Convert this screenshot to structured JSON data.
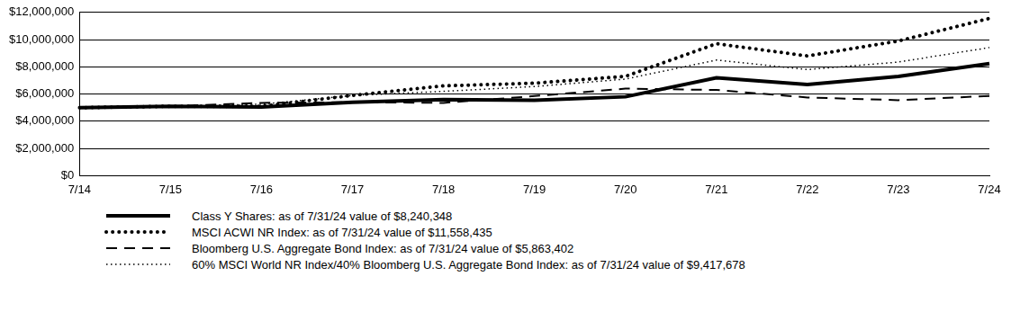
{
  "chart_data": {
    "type": "line",
    "categories": [
      "7/14",
      "7/15",
      "7/16",
      "7/17",
      "7/18",
      "7/19",
      "7/20",
      "7/21",
      "7/22",
      "7/23",
      "7/24"
    ],
    "series": [
      {
        "name": "Class Y Shares: as of 7/31/24 value of $8,240,348",
        "color": "#000000",
        "line_style": "solid",
        "values": [
          5000000,
          5100000,
          5050000,
          5400000,
          5600000,
          5550000,
          5800000,
          7200000,
          6700000,
          7300000,
          8240348
        ]
      },
      {
        "name": "MSCI ACWI NR Index: as of 7/31/24 value of $11,558,435",
        "color": "#000000",
        "line_style": "dotted",
        "values": [
          5000000,
          5100000,
          5100000,
          5900000,
          6600000,
          6800000,
          7300000,
          9700000,
          8800000,
          9900000,
          11558435
        ]
      },
      {
        "name": "Bloomberg U.S. Aggregate Bond Index: as of 7/31/24 value of $5,863,402",
        "color": "#000000",
        "line_style": "dashed",
        "values": [
          5000000,
          5100000,
          5350000,
          5400000,
          5350000,
          5850000,
          6400000,
          6300000,
          5750000,
          5550000,
          5863402
        ]
      },
      {
        "name": "60% MSCI World NR Index/40% Bloomberg U.S. Aggregate Bond Index: as of 7/31/24 value of $9,417,678",
        "color": "#000000",
        "line_style": "dotted",
        "values": [
          5000000,
          5100000,
          5250000,
          5900000,
          6200000,
          6550000,
          7100000,
          8500000,
          7800000,
          8350000,
          9417678
        ]
      }
    ],
    "ylim": [
      0,
      12000000
    ],
    "yticks": [
      {
        "value": 0,
        "label": "$0"
      },
      {
        "value": 2000000,
        "label": "$2,000,000"
      },
      {
        "value": 4000000,
        "label": "$4,000,000"
      },
      {
        "value": 6000000,
        "label": "$6,000,000"
      },
      {
        "value": 8000000,
        "label": "$8,000,000"
      },
      {
        "value": 10000000,
        "label": "$10,000,000"
      },
      {
        "value": 12000000,
        "label": "$12,000,000"
      }
    ],
    "grid": true,
    "legend": "bottom"
  }
}
